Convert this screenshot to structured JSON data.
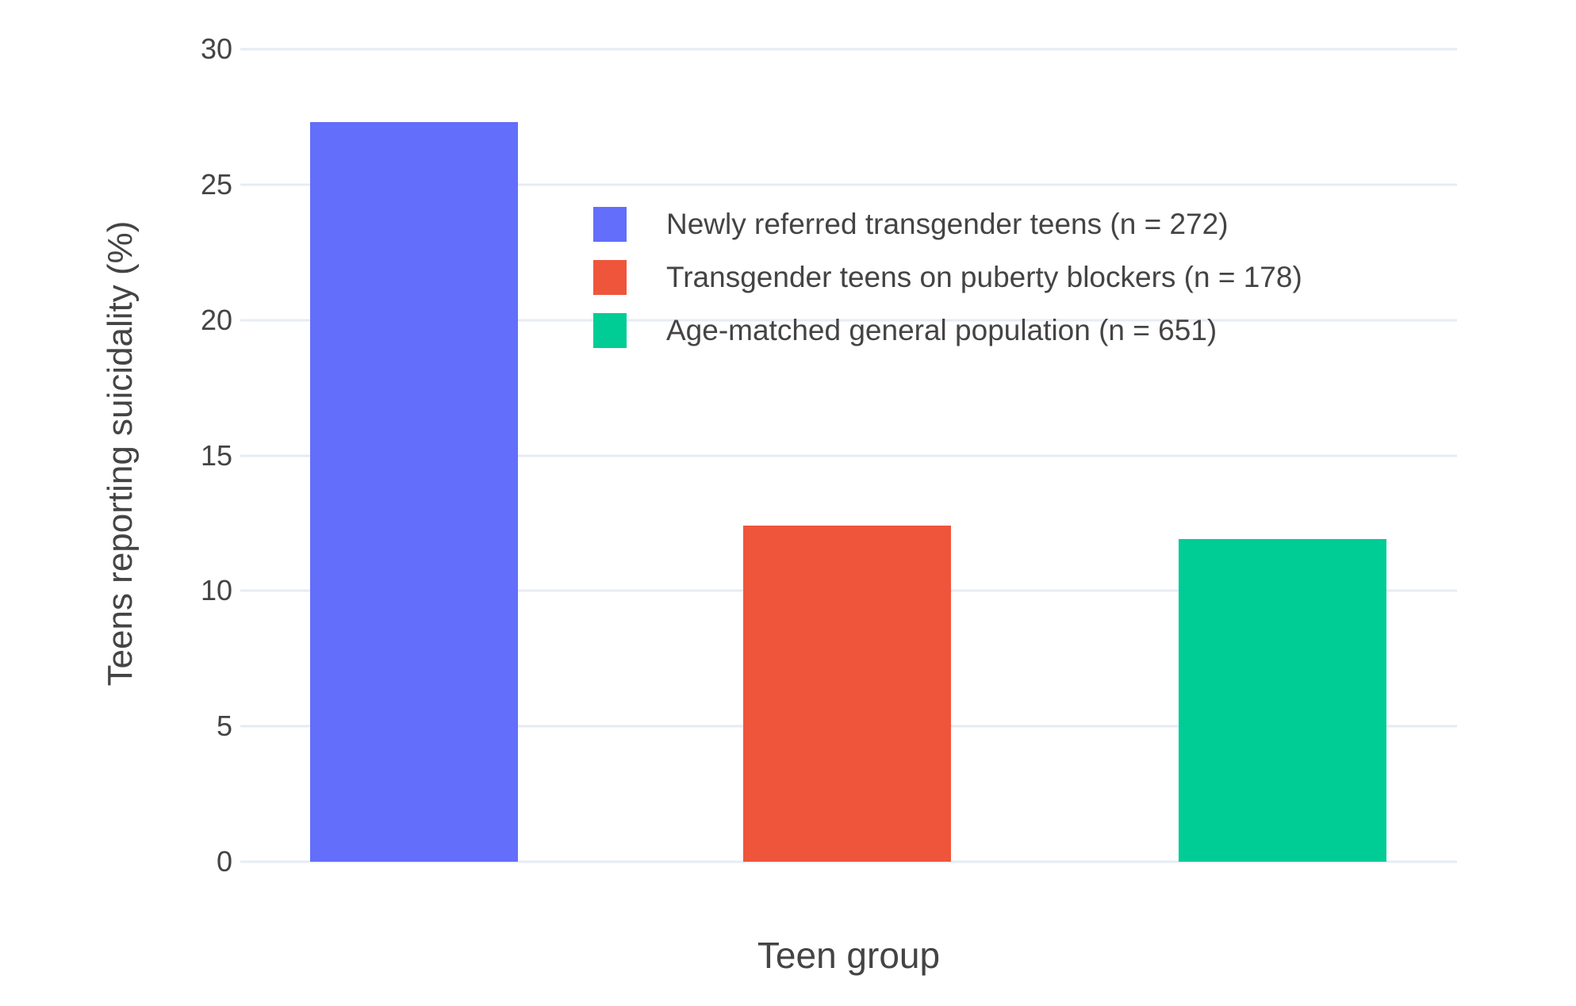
{
  "chart_data": {
    "type": "bar",
    "title": "",
    "xlabel": "Teen group",
    "ylabel": "Teens reporting suicidality (%)",
    "ylim": [
      0,
      30
    ],
    "yticks": [
      0,
      5,
      10,
      15,
      20,
      25,
      30
    ],
    "grid": true,
    "legend_position": "inside top-left",
    "background_color": "#ffffff",
    "gridline_color": "#e6ebf4",
    "text_color": "#444444",
    "series": [
      {
        "name": "Newly referred transgender teens (n = 272)",
        "value": 27.3,
        "color": "#636efa"
      },
      {
        "name": "Transgender teens on puberty blockers (n = 178)",
        "value": 12.4,
        "color": "#ef553b"
      },
      {
        "name": "Age-matched general population (n = 651)",
        "value": 11.9,
        "color": "#00cc96"
      }
    ]
  }
}
